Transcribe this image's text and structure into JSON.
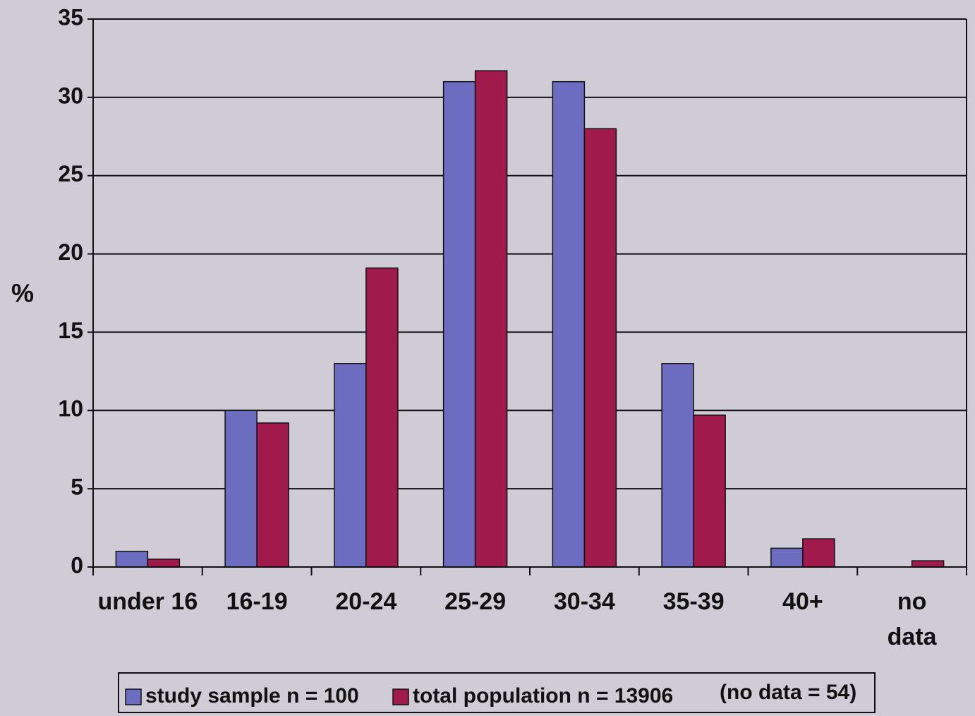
{
  "chart_data": {
    "type": "bar",
    "y_label": "%",
    "categories": [
      "under 16",
      "16-19",
      "20-24",
      "25-29",
      "30-34",
      "35-39",
      "40+",
      "no data"
    ],
    "series": [
      {
        "name": "study sample n = 100",
        "color": "#6c6cc0",
        "values": [
          1,
          10,
          13,
          31,
          31,
          13,
          1.2,
          0
        ]
      },
      {
        "name": "total population n = 13906",
        "color": "#a01a4c",
        "values": [
          0.5,
          9.2,
          19.1,
          31.7,
          28,
          9.7,
          1.8,
          0.4
        ]
      }
    ],
    "legend_note": "(no data = 54)",
    "ylim": [
      0,
      35
    ],
    "yticks": [
      0,
      5,
      10,
      15,
      20,
      25,
      30,
      35
    ],
    "grid": true,
    "legend": "bottom"
  }
}
